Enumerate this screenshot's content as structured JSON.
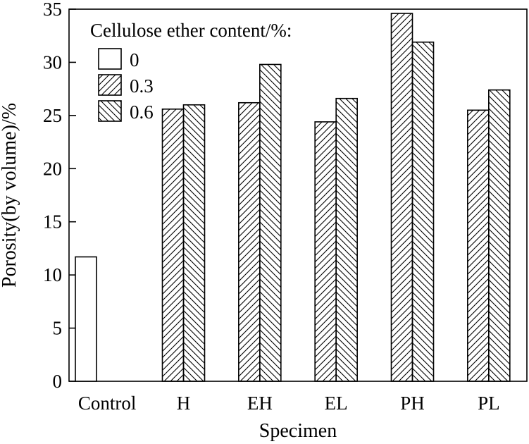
{
  "chart_data": {
    "type": "bar",
    "title": "",
    "xlabel": "Specimen",
    "ylabel": "Porosity(by volume)/%",
    "ylim": [
      0,
      35
    ],
    "yticks": [
      0,
      5,
      10,
      15,
      20,
      25,
      30,
      35
    ],
    "grid": false,
    "legend": {
      "title": "Cellulose ether content/%:",
      "placement": "top-left"
    },
    "categories": [
      "Control",
      "H",
      "EH",
      "EL",
      "PH",
      "PL"
    ],
    "series": [
      {
        "name": "0",
        "pattern": "none",
        "values": [
          11.7,
          null,
          null,
          null,
          null,
          null
        ]
      },
      {
        "name": "0.3",
        "pattern": "diag-up",
        "values": [
          null,
          25.6,
          26.2,
          24.4,
          34.6,
          25.5
        ]
      },
      {
        "name": "0.6",
        "pattern": "diag-down",
        "values": [
          null,
          26.0,
          29.8,
          26.6,
          31.9,
          27.4
        ]
      }
    ]
  }
}
